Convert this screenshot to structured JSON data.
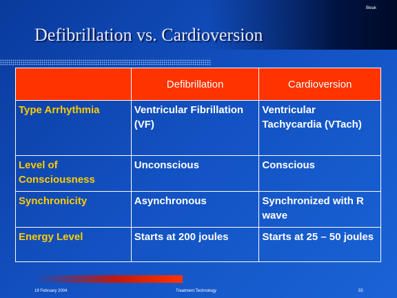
{
  "corner_label": "Bleak",
  "title": "Defibrillation vs. Cardioversion",
  "table": {
    "columns": [
      "Defibrillation",
      "Cardioversion"
    ],
    "rows": [
      [
        "Type Arrhythmia",
        "Ventricular Fibrillation (VF)",
        "Ventricular Tachycardia (VTach)"
      ],
      [
        "Level of Consciousness",
        "Unconscious",
        "Conscious"
      ],
      [
        "Synchronicity",
        "Asynchronous",
        "Synchronized with R wave"
      ],
      [
        "Energy Level",
        "Starts at 200 joules",
        "Starts at 25 – 50 joules"
      ]
    ]
  },
  "footer": {
    "date": "19 February 2004",
    "topic": "Treatment Technology",
    "page": "55"
  }
}
